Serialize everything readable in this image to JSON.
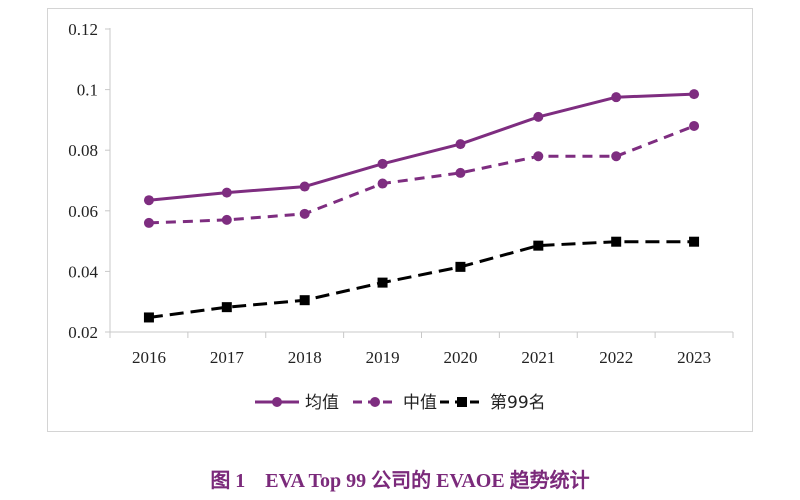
{
  "caption": "图 1    EVA Top 99 公司的 EVAOE 趋势统计",
  "chart_data": {
    "type": "line",
    "title": "",
    "xlabel": "",
    "ylabel": "",
    "categories": [
      "2016",
      "2017",
      "2018",
      "2019",
      "2020",
      "2021",
      "2022",
      "2023"
    ],
    "y_ticks": [
      "0.02",
      "0.04",
      "0.06",
      "0.08",
      "0.1",
      "0.12"
    ],
    "ylim": [
      0.02,
      0.12
    ],
    "grid": false,
    "legend_position": "bottom",
    "series": [
      {
        "name": "均值",
        "values": [
          0.0635,
          0.066,
          0.068,
          0.0755,
          0.082,
          0.091,
          0.0975,
          0.0985
        ],
        "color": "#7e2d80",
        "line_style": "solid",
        "marker": "circle"
      },
      {
        "name": "中值",
        "values": [
          0.056,
          0.057,
          0.059,
          0.069,
          0.0725,
          0.078,
          0.078,
          0.088
        ],
        "color": "#7e2d80",
        "line_style": "dashed",
        "marker": "circle"
      },
      {
        "name": "第99名",
        "values": [
          0.0248,
          0.0282,
          0.0305,
          0.0363,
          0.0415,
          0.0485,
          0.0498,
          0.0498
        ],
        "color": "#000000",
        "line_style": "dashed",
        "marker": "square"
      }
    ]
  }
}
